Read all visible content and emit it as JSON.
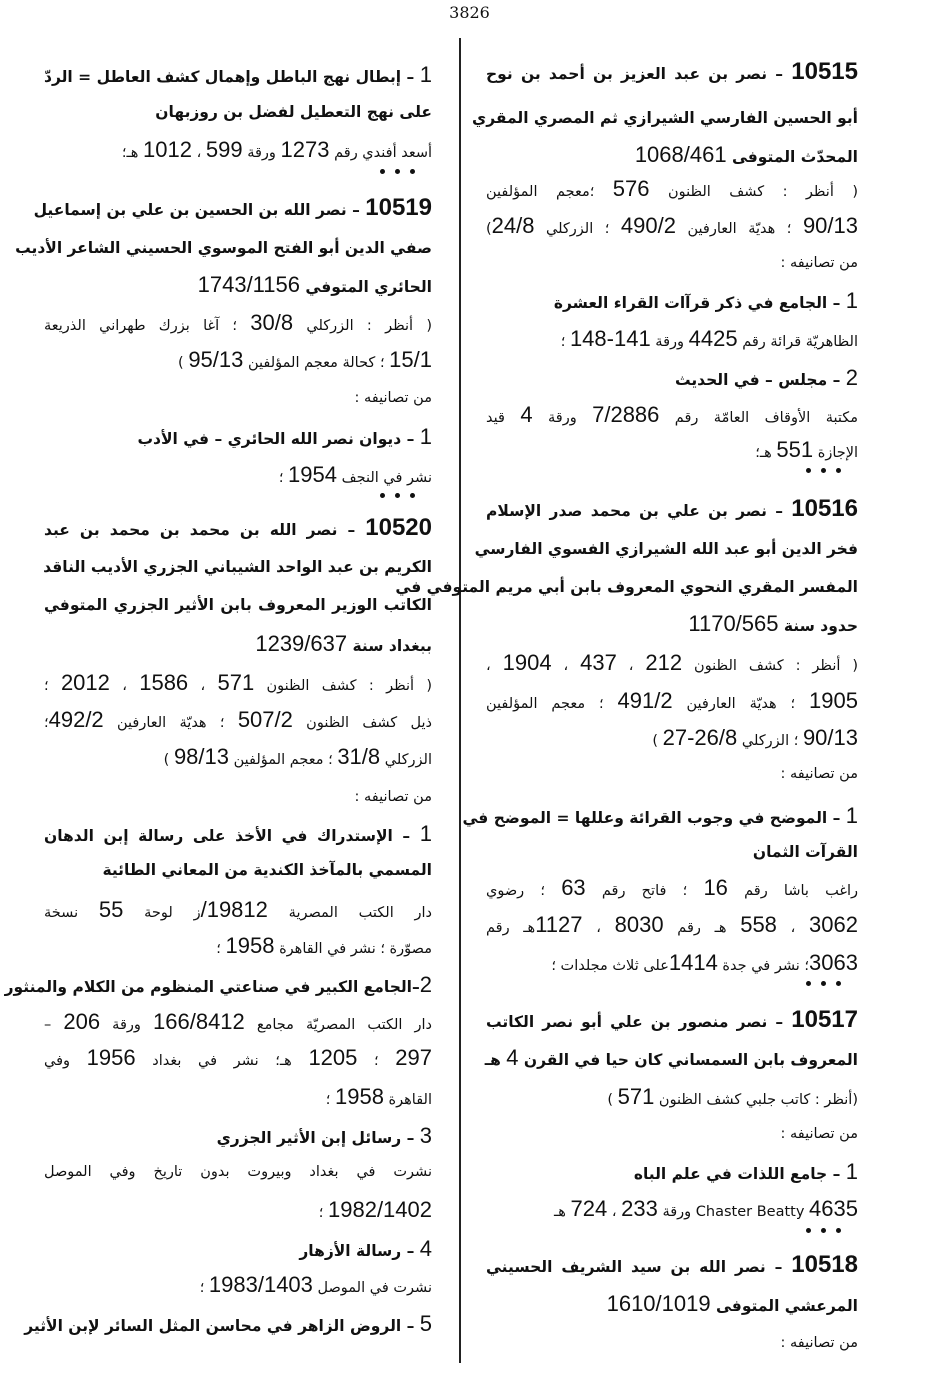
{
  "page_number": "3826",
  "right_column": [
    {
      "style": "h",
      "justify": true,
      "text": "10515 – نصر بن عبد العزيز بن أحمد بن نوح"
    },
    {
      "style": "h",
      "justify": true,
      "text": "أبو الحسين الفارسي الشيرازي ثم المصري المقري"
    },
    {
      "style": "h",
      "justify": false,
      "text": "المحدّث المتوفى 1068/461"
    },
    {
      "style": "n",
      "justify": true,
      "text": "( أنظر : كشف الظنون 576 ؛معجم المؤلفين"
    },
    {
      "style": "n",
      "justify": true,
      "text": "90/13 ؛ هديّة العارفين 490/2 ؛ الزركلي 24/8)"
    },
    {
      "style": "n",
      "justify": false,
      "text": "من تصانيفه :"
    },
    {
      "style": "h",
      "justify": false,
      "text": "1 – الجامع في ذكر قرآات القراء العشرة"
    },
    {
      "style": "n",
      "justify": false,
      "text": "الظاهريّة قرائة رقم 4425 ورقة 141-148 ؛"
    },
    {
      "style": "h",
      "justify": false,
      "text": "2 – مجلس – في الحديث"
    },
    {
      "style": "n",
      "justify": true,
      "text": "مكتبة الأوقاف العامّة رقم 7/2886 ورقة 4 قيد"
    },
    {
      "style": "n",
      "justify": false,
      "text": "الإجازة 551 هـ؛"
    },
    {
      "style": "d"
    },
    {
      "style": "h",
      "justify": true,
      "text": "10516 – نصر بن علي بن محمد صدر الإسلام"
    },
    {
      "style": "h",
      "justify": true,
      "text": "فخر الدين أبو عبد الله الشيرازي الفسوي الفارسي"
    },
    {
      "style": "h",
      "justify": true,
      "text": "المفسر المقري النحوي المعروف بابن أبي مريم المتوفي في"
    },
    {
      "style": "h",
      "justify": false,
      "text": "حدود سنة 1170/565"
    },
    {
      "style": "n",
      "justify": true,
      "text": "( أنظر : كشف الظنون 212 ، 437 ، 1904 ،"
    },
    {
      "style": "n",
      "justify": true,
      "text": "1905 ؛ هديّة العارفين 491/2 ؛ معجم المؤلفين"
    },
    {
      "style": "n",
      "justify": false,
      "text": "90/13 ؛ الزركلي 26/8-27 )"
    },
    {
      "style": "n",
      "justify": false,
      "text": "من تصانيفه :"
    },
    {
      "style": "h",
      "justify": true,
      "text": "1 – الموضح في وجوب القرائة وعللها = الموضح في"
    },
    {
      "style": "h",
      "justify": false,
      "text": "القرآت الثمان"
    },
    {
      "style": "n",
      "justify": true,
      "text": "راغب باشا رقم 16 ؛ فاتح رقم 63 ؛ رضوي"
    },
    {
      "style": "n",
      "justify": true,
      "text": "3062 ، 558 هـ رقم 8030 ، 1127هـ رقم"
    },
    {
      "style": "n",
      "justify": false,
      "text": "3063؛ نشر في جدة 1414على ثلاث مجلدات ؛"
    },
    {
      "style": "d"
    },
    {
      "style": "h",
      "justify": true,
      "text": "10517 – نصر منصور بن علي أبو نصر الكاتب"
    },
    {
      "style": "h",
      "justify": false,
      "text": "المعروف بابن السمساني كان حيا في القرن 4 هـ"
    },
    {
      "style": "n",
      "justify": false,
      "text": "(أنظر : كاتب جلبي كشف الظنون 571 )"
    },
    {
      "style": "n",
      "justify": false,
      "text": "من تصانيفه :"
    },
    {
      "style": "h",
      "justify": false,
      "text": "1 – جامع اللذات في علم الباه"
    },
    {
      "style": "n",
      "justify": false,
      "text": "4635 Chaster Beatty ورقة 233 ، 724 هـ"
    },
    {
      "style": "d"
    },
    {
      "style": "h",
      "justify": true,
      "text": "10518 – نصر الله بن سيد الشريف الحسيني"
    },
    {
      "style": "h",
      "justify": false,
      "text": "المرعشي المتوفى 1610/1019"
    },
    {
      "style": "n",
      "justify": false,
      "text": "من تصانيفه :"
    }
  ],
  "left_column": [
    {
      "style": "h",
      "justify": true,
      "text": "1 – إبطال نهج الباطل وإهمال كشف العاطل = الردّ"
    },
    {
      "style": "h",
      "justify": false,
      "text": "على نهج التعطيل لفضل بن روزبهان"
    },
    {
      "style": "n",
      "justify": false,
      "text": "أسعد أفندي رقم 1273 ورقة 599 ، 1012 هـ؛"
    },
    {
      "style": "d"
    },
    {
      "style": "h",
      "justify": true,
      "text": "10519 – نصر الله بن الحسين بن علي بن إسماعيل"
    },
    {
      "style": "h",
      "justify": true,
      "text": "صفي الدين أبو الفتح الموسوي الحسيني الشاعر الأديب"
    },
    {
      "style": "h",
      "justify": false,
      "text": "الحائري المتوفي 1743/1156"
    },
    {
      "style": "n",
      "justify": true,
      "text": "( أنظر : الزركلي 30/8 ؛ آغا بزرك طهراني الذريعة"
    },
    {
      "style": "n",
      "justify": false,
      "text": "15/1 ؛ كحالة معجم المؤلفين 95/13 )"
    },
    {
      "style": "n",
      "justify": false,
      "text": "من تصانيفه :"
    },
    {
      "style": "h",
      "justify": false,
      "text": "1 – ديوان نصر الله الحائري – في الأدب"
    },
    {
      "style": "n",
      "justify": false,
      "text": "نشر في النجف 1954 ؛"
    },
    {
      "style": "d"
    },
    {
      "style": "h",
      "justify": true,
      "text": "10520 – نصر الله بن محمد بن محمد بن عبد"
    },
    {
      "style": "h",
      "justify": true,
      "text": "الكريم بن عبد الواحد الشيباني الجزري الأديب الناقد"
    },
    {
      "style": "h",
      "justify": true,
      "text": "الكاتب الوزير المعروف بابن الأثير الجزري المتوفي"
    },
    {
      "style": "h",
      "justify": false,
      "text": "ببغداد سنة 1239/637"
    },
    {
      "style": "n",
      "justify": true,
      "text": "( أنظر : كشف الظنون 571 ، 1586 ، 2012 ؛"
    },
    {
      "style": "n",
      "justify": true,
      "text": "ذيل كشف الظنون 507/2 ؛ هديّة العارفين 492/2؛"
    },
    {
      "style": "n",
      "justify": false,
      "text": "الزركلي 31/8 ؛ معجم المؤلفين 98/13 )"
    },
    {
      "style": "n",
      "justify": false,
      "text": "من تصانيفه :"
    },
    {
      "style": "h",
      "justify": true,
      "text": "1 – الإستدراك في الأخذ على رسالة إبن الدهان"
    },
    {
      "style": "h",
      "justify": false,
      "text": "المسمي بالمآخذ الكندية من المعاني الطائية"
    },
    {
      "style": "n",
      "justify": true,
      "text": "دار الكتب المصرية 19812/ز لوحة 55 نسخة"
    },
    {
      "style": "n",
      "justify": false,
      "text": "مصوّرة ؛ نشر في القاهرة 1958 ؛"
    },
    {
      "style": "h",
      "justify": true,
      "text": "2–الجامع الكبير في صناعتي المنظوم من الكلام والمنثور"
    },
    {
      "style": "n",
      "justify": true,
      "text": "دار الكتب المصريّة مجامع 166/8412 ورقة 206 –"
    },
    {
      "style": "n",
      "justify": true,
      "text": "297 ؛ 1205 هـ؛ نشر في بغداد 1956 وفي"
    },
    {
      "style": "n",
      "justify": false,
      "text": "القاهرة 1958 ؛"
    },
    {
      "style": "h",
      "justify": false,
      "text": "3 – رسائل إبن الأثير الجزري"
    },
    {
      "style": "n",
      "justify": true,
      "text": "نشرت في بغداد وبيروت بدون تاريخ وفي الموصل"
    },
    {
      "style": "n",
      "justify": false,
      "text": "1982/1402 ؛"
    },
    {
      "style": "h",
      "justify": false,
      "text": "4 – رسالة الأزهار"
    },
    {
      "style": "n",
      "justify": false,
      "text": "نشرت في الموصل 1983/1403 ؛"
    },
    {
      "style": "h",
      "justify": false,
      "text": "5 – الروض الزاهر في محاسن المثل السائر لإبن الأثير"
    }
  ]
}
